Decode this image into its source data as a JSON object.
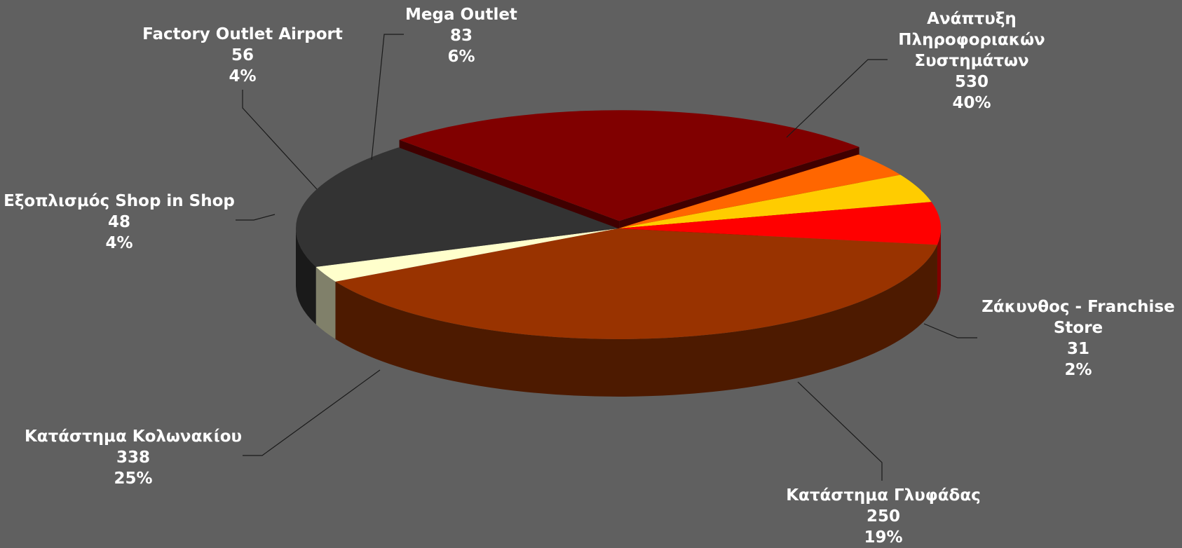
{
  "chart_data": {
    "type": "pie",
    "title": "",
    "slices": [
      {
        "label": "Ανάπτυξη Πληροφοριακών Συστημάτων",
        "lines": [
          "Ανάπτυξη",
          "Πληροφοριακών",
          "Συστημάτων"
        ],
        "value": 530,
        "percent": "40%",
        "color": "#993300",
        "side_color": "#4d1a00"
      },
      {
        "label": "Ζάκυνθος - Franchise Store",
        "lines": [
          "Ζάκυνθος - Franchise",
          "Store"
        ],
        "value": 31,
        "percent": "2%",
        "color": "#ffffcc",
        "side_color": "#80806a"
      },
      {
        "label": "Κατάστημα Γλυφάδας",
        "lines": [
          "Κατάστημα Γλυφάδας"
        ],
        "value": 250,
        "percent": "19%",
        "color": "#333333",
        "side_color": "#1a1a1a"
      },
      {
        "label": "Κατάστημα Κολωνακίου",
        "lines": [
          "Κατάστημα Κολωνακίου"
        ],
        "value": 338,
        "percent": "25%",
        "color": "#800000",
        "side_color": "#400000"
      },
      {
        "label": "Εξοπλισμός Shop in Shop",
        "lines": [
          "Εξοπλισμός Shop in Shop"
        ],
        "value": 48,
        "percent": "4%",
        "color": "#ff6600",
        "side_color": "#803300"
      },
      {
        "label": "Factory Outlet Airport",
        "lines": [
          "Factory Outlet Airport"
        ],
        "value": 56,
        "percent": "4%",
        "color": "#ffcc00",
        "side_color": "#806600"
      },
      {
        "label": "Mega Outlet",
        "lines": [
          "Mega Outlet"
        ],
        "value": 83,
        "percent": "6%",
        "color": "#ff0000",
        "side_color": "#800000"
      }
    ],
    "background": "#606060",
    "legend": "none"
  }
}
